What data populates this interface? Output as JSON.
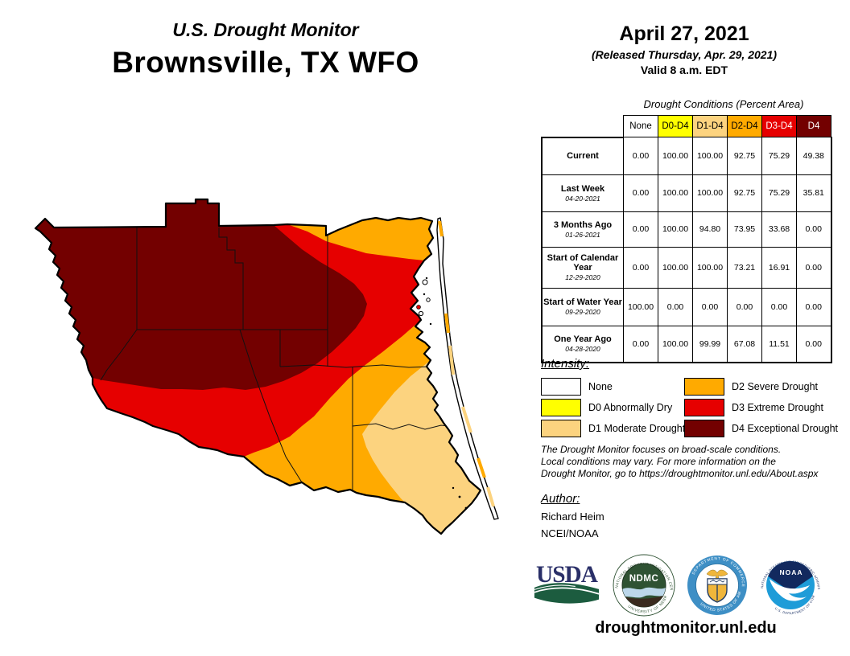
{
  "header": {
    "title_line1": "U.S. Drought Monitor",
    "title_line2": "Brownsville, TX WFO",
    "date": "April 27, 2021",
    "released": "(Released Thursday, Apr. 29, 2021)",
    "valid": "Valid 8 a.m. EDT"
  },
  "table": {
    "title": "Drought Conditions (Percent Area)",
    "columns": [
      {
        "label": "None",
        "key": "none",
        "text_color": "#000000"
      },
      {
        "label": "D0-D4",
        "key": "d0",
        "text_color": "#000000"
      },
      {
        "label": "D1-D4",
        "key": "d1",
        "text_color": "#000000"
      },
      {
        "label": "D2-D4",
        "key": "d2",
        "text_color": "#000000"
      },
      {
        "label": "D3-D4",
        "key": "d3",
        "text_color": "#ffffff"
      },
      {
        "label": "D4",
        "key": "d4",
        "text_color": "#ffffff"
      }
    ],
    "rows": [
      {
        "label": "Current",
        "date": "",
        "values": [
          "0.00",
          "100.00",
          "100.00",
          "92.75",
          "75.29",
          "49.38"
        ]
      },
      {
        "label": "Last Week",
        "date": "04-20-2021",
        "values": [
          "0.00",
          "100.00",
          "100.00",
          "92.75",
          "75.29",
          "35.81"
        ]
      },
      {
        "label": "3 Months Ago",
        "date": "01-26-2021",
        "values": [
          "0.00",
          "100.00",
          "94.80",
          "73.95",
          "33.68",
          "0.00"
        ]
      },
      {
        "label": "Start of Calendar Year",
        "date": "12-29-2020",
        "values": [
          "0.00",
          "100.00",
          "100.00",
          "73.21",
          "16.91",
          "0.00"
        ]
      },
      {
        "label": "Start of Water Year",
        "date": "09-29-2020",
        "values": [
          "100.00",
          "0.00",
          "0.00",
          "0.00",
          "0.00",
          "0.00"
        ]
      },
      {
        "label": "One Year Ago",
        "date": "04-28-2020",
        "values": [
          "0.00",
          "100.00",
          "99.99",
          "67.08",
          "11.51",
          "0.00"
        ]
      }
    ]
  },
  "legend": {
    "title": "Intensity:",
    "items": [
      {
        "key": "none",
        "label": "None"
      },
      {
        "key": "d0",
        "label": "D0 Abnormally Dry"
      },
      {
        "key": "d1",
        "label": "D1 Moderate Drought"
      },
      {
        "key": "d2",
        "label": "D2 Severe Drought"
      },
      {
        "key": "d3",
        "label": "D3 Extreme Drought"
      },
      {
        "key": "d4",
        "label": "D4 Exceptional Drought"
      }
    ]
  },
  "colors": {
    "none": "#FFFFFF",
    "d0": "#FFFF00",
    "d1": "#FCD37F",
    "d2": "#FFAA00",
    "d3": "#E60000",
    "d4": "#730000",
    "usda_navy": "#2A2F68",
    "usda_green": "#1C5C3F",
    "ndmc_green": "#2F5233",
    "ndmc_blue": "#BCD7EA",
    "ndmc_brown": "#3A2A1E",
    "doc_blue": "#3E8FC5",
    "doc_gold": "#F0B63B",
    "noaa_navy": "#12295E",
    "noaa_blue": "#1E9CD8"
  },
  "disclaimer": [
    "The Drought Monitor focuses on broad-scale conditions.",
    "Local conditions may vary. For more information on the",
    "Drought Monitor, go to https://droughtmonitor.unl.edu/About.aspx"
  ],
  "author": {
    "title": "Author:",
    "name": "Richard Heim",
    "org": "NCEI/NOAA"
  },
  "logos": {
    "usda": {
      "label": "USDA"
    },
    "ndmc": {
      "label": "NDMC",
      "ring_top": "NATIONAL DROUGHT MITIGATION CENTER",
      "ring_bottom": "UNIVERSITY OF NEBRASKA"
    },
    "doc": {
      "ring_top": "DEPARTMENT OF COMMERCE",
      "ring_bottom": "UNITED STATES OF AMERICA"
    },
    "noaa": {
      "label": "NOAA",
      "ring_top": "NATIONAL OCEANIC AND ATMOSPHERIC ADMINISTRATION",
      "ring_bottom": "U.S. DEPARTMENT OF COMMERCE"
    }
  },
  "footer": {
    "url": "droughtmonitor.unl.edu"
  }
}
